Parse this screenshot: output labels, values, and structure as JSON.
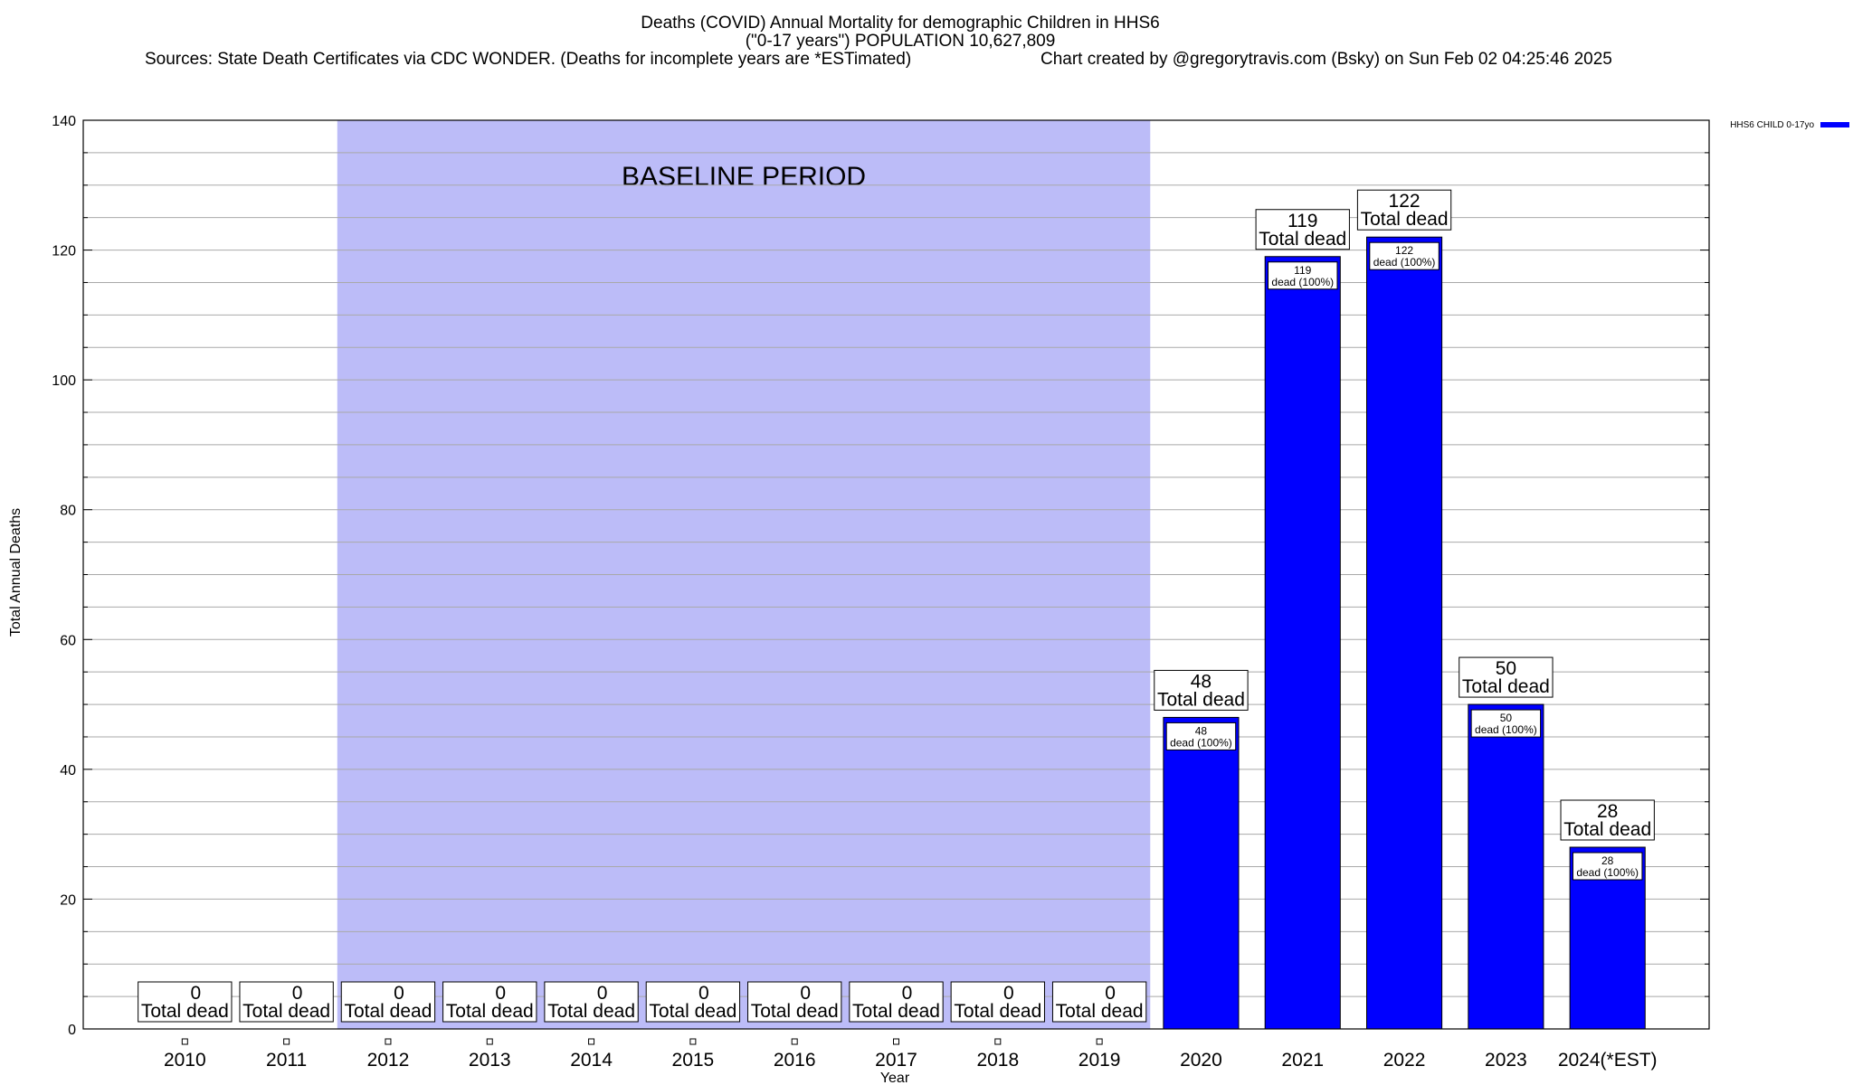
{
  "chart_data": {
    "type": "bar",
    "title": "Deaths (COVID) Annual Mortality for demographic Children in HHS6",
    "subtitle": "(\"0-17 years\") POPULATION 10,627,809",
    "source_note": "Sources: State Death Certificates via CDC WONDER. (Deaths for incomplete years are *ESTimated)",
    "credit_note": "Chart created by @gregorytravis.com (Bsky) on Sun Feb 02 04:25:46 2025",
    "xlabel": "Year",
    "ylabel": "Total Annual Deaths",
    "ylim": [
      0,
      140
    ],
    "yticks": [
      0,
      20,
      40,
      60,
      80,
      100,
      120,
      140
    ],
    "grid": true,
    "legend_position": "top-right",
    "categories": [
      "2010",
      "2011",
      "2012",
      "2013",
      "2014",
      "2015",
      "2016",
      "2017",
      "2018",
      "2019",
      "2020",
      "2021",
      "2022",
      "2023",
      "2024(*EST)"
    ],
    "series": [
      {
        "name": "HHS6 CHILD 0-17yo",
        "color": "#0000ff",
        "values": [
          0,
          0,
          0,
          0,
          0,
          0,
          0,
          0,
          0,
          0,
          48,
          119,
          122,
          50,
          28
        ]
      }
    ],
    "total_label_suffix": "Total dead",
    "inner_label_suffix": "dead (100%)",
    "baseline": {
      "label": "BASELINE PERIOD",
      "start": "2012",
      "end": "2019",
      "color": "#bcbcf8"
    }
  }
}
